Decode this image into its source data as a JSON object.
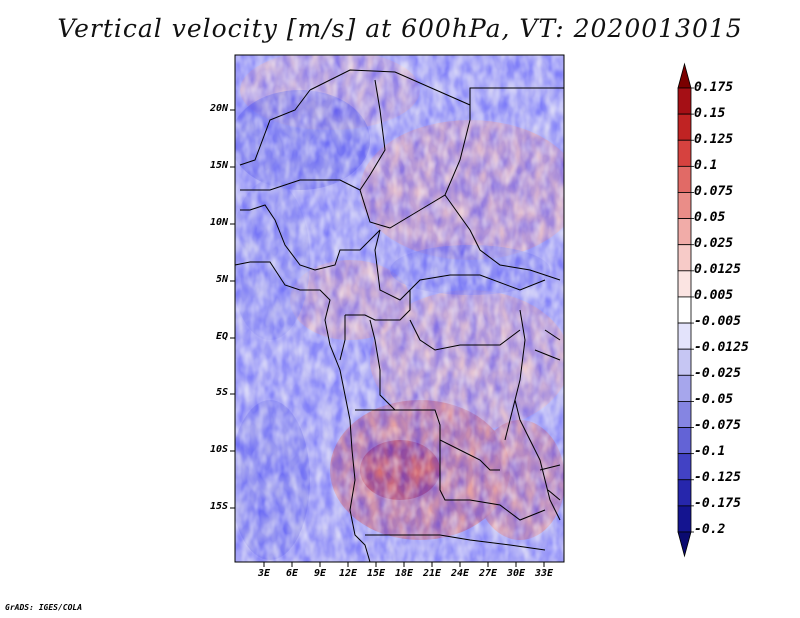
{
  "title": "Vertical velocity [m/s] at 600hPa, VT: 2020013015",
  "footer": "GrADS: IGES/COLA",
  "map": {
    "lat_labels": [
      "20N",
      "15N",
      "10N",
      "5N",
      "EQ",
      "5S",
      "10S",
      "15S"
    ],
    "lon_labels": [
      "3E",
      "6E",
      "9E",
      "12E",
      "15E",
      "18E",
      "21E",
      "24E",
      "27E",
      "30E",
      "33E"
    ]
  },
  "colorbar": {
    "labels": [
      "0.175",
      "0.15",
      "0.125",
      "0.1",
      "0.075",
      "0.05",
      "0.025",
      "0.0125",
      "0.005",
      "-0.005",
      "-0.0125",
      "-0.025",
      "-0.05",
      "-0.075",
      "-0.1",
      "-0.125",
      "-0.175",
      "-0.2"
    ],
    "colors": [
      "#7a0000",
      "#a50f15",
      "#c02323",
      "#d6423f",
      "#e16a66",
      "#ea8d88",
      "#f1aca8",
      "#f7cbc8",
      "#fbe4e2",
      "#ffffff",
      "#e3e3fb",
      "#c6c6f3",
      "#a6a6ec",
      "#8585e2",
      "#6363d6",
      "#4242c4",
      "#2626ac",
      "#141490",
      "#0a0a70"
    ]
  }
}
